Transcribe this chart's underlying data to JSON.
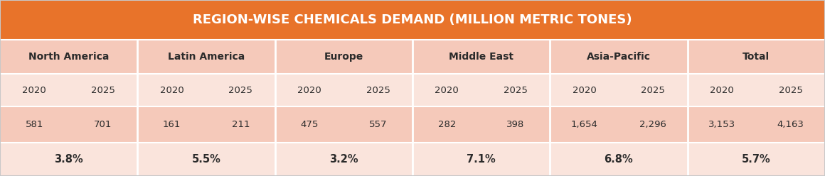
{
  "title": "REGION-WISE CHEMICALS DEMAND (MILLION METRIC TONES)",
  "title_bg": "#E8732A",
  "title_color": "#FFFFFF",
  "row_bg_dark": "#F5C9BA",
  "row_bg_light": "#FAE4DC",
  "border_color": "#FFFFFF",
  "outer_border": "#D0D0D0",
  "regions": [
    "North America",
    "Latin America",
    "Europe",
    "Middle East",
    "Asia-Pacific",
    "Total"
  ],
  "years": [
    "2020",
    "2025"
  ],
  "values_2020": [
    "581",
    "161",
    "475",
    "282",
    "1,654",
    "3,153"
  ],
  "values_2025": [
    "701",
    "211",
    "557",
    "398",
    "2,296",
    "4,163"
  ],
  "cagr": [
    "3.8%",
    "5.5%",
    "3.2%",
    "7.1%",
    "6.8%",
    "5.7%"
  ],
  "text_color": "#2B2B2B",
  "title_fontsize": 13,
  "region_fontsize": 10,
  "year_fontsize": 9.5,
  "value_fontsize": 9.5,
  "cagr_fontsize": 10.5
}
